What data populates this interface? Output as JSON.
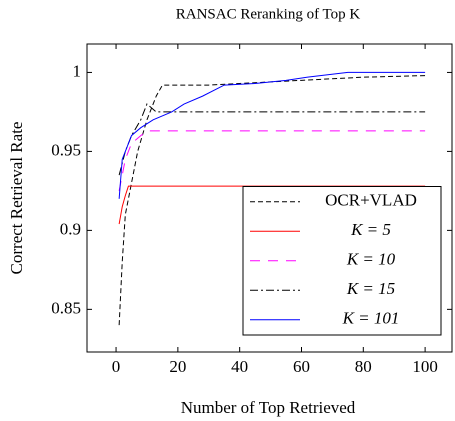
{
  "chart_data": {
    "type": "line",
    "title": "RANSAC Reranking of Top K",
    "xlabel": "Number of Top Retrieved",
    "ylabel": "Correct Retrieval Rate",
    "xlim": [
      -9.4,
      108.7
    ],
    "ylim": [
      0.823,
      1.018
    ],
    "xticks": [
      0,
      20,
      40,
      60,
      80,
      100
    ],
    "yticks": [
      0.85,
      0.9,
      0.95,
      1
    ],
    "legend": "lower right",
    "series": [
      {
        "name": "OCR+VLAD",
        "color": "#000000",
        "dash": "dashed",
        "x": [
          1,
          2,
          3,
          5,
          7,
          10,
          13,
          15,
          20,
          30,
          40,
          60,
          80,
          100
        ],
        "values": [
          0.84,
          0.88,
          0.91,
          0.93,
          0.95,
          0.97,
          0.985,
          0.992,
          0.992,
          0.992,
          0.993,
          0.995,
          0.997,
          0.998
        ]
      },
      {
        "name": "K = 5",
        "color": "#ff0000",
        "dash": "solid",
        "x": [
          1,
          2,
          3,
          4,
          100
        ],
        "values": [
          0.904,
          0.915,
          0.922,
          0.928,
          0.928
        ]
      },
      {
        "name": "K = 10",
        "color": "#ff00ff",
        "dash": "loosely dashed",
        "x": [
          1,
          3,
          5,
          8,
          10,
          100
        ],
        "values": [
          0.925,
          0.945,
          0.955,
          0.96,
          0.963,
          0.963
        ]
      },
      {
        "name": "K = 15",
        "color": "#000000",
        "dash": "dash-dot",
        "x": [
          1,
          3,
          5,
          8,
          10,
          13,
          100
        ],
        "values": [
          0.935,
          0.95,
          0.96,
          0.97,
          0.98,
          0.975,
          0.975
        ]
      },
      {
        "name": "K = 101",
        "color": "#0000ff",
        "dash": "solid",
        "x": [
          1,
          2,
          5,
          8,
          12,
          18,
          22,
          28,
          35,
          45,
          55,
          62,
          75,
          100
        ],
        "values": [
          0.92,
          0.945,
          0.96,
          0.965,
          0.97,
          0.975,
          0.98,
          0.985,
          0.992,
          0.993,
          0.995,
          0.997,
          1.0,
          1.0
        ]
      }
    ]
  }
}
